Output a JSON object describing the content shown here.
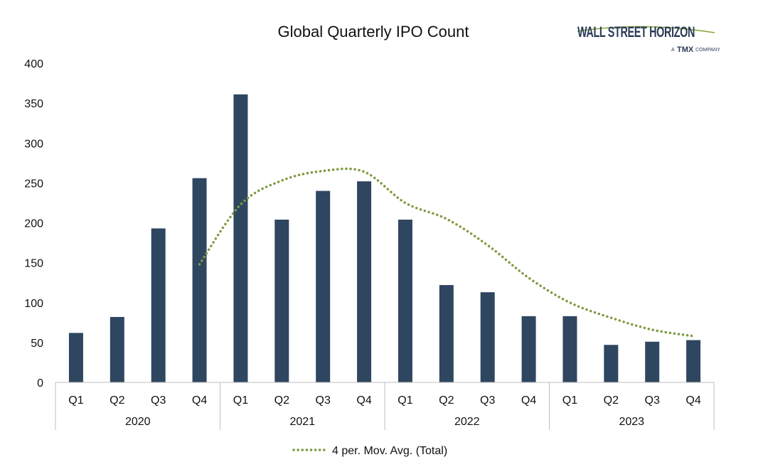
{
  "chart_data": {
    "type": "bar",
    "title": "Global Quarterly IPO Count",
    "quarters": [
      "Q1",
      "Q2",
      "Q3",
      "Q4",
      "Q1",
      "Q2",
      "Q3",
      "Q4",
      "Q1",
      "Q2",
      "Q3",
      "Q4",
      "Q1",
      "Q2",
      "Q3",
      "Q4"
    ],
    "years": [
      "2020",
      "2021",
      "2022",
      "2023"
    ],
    "values": [
      62,
      82,
      193,
      256,
      361,
      204,
      240,
      252,
      204,
      122,
      113,
      83,
      83,
      47,
      51,
      53
    ],
    "trendline": {
      "name": "4 per. Mov. Avg. (Total)",
      "start_index": 3,
      "values": [
        148,
        223,
        253,
        265,
        264,
        225,
        205,
        172,
        131,
        100,
        81,
        66,
        58
      ]
    },
    "ylim": [
      0,
      400
    ],
    "yticks": [
      "0",
      "50",
      "100",
      "150",
      "200",
      "250",
      "300",
      "350",
      "400"
    ],
    "grid": false,
    "legend_position": "bottom",
    "colors": {
      "bar": "#2f4660",
      "trend": "#7f9a40"
    }
  },
  "logo": {
    "name": "WALL STREET HORIZON",
    "tagline_a": "A",
    "tagline_tmx": "TMX",
    "tagline_company": "COMPANY"
  }
}
